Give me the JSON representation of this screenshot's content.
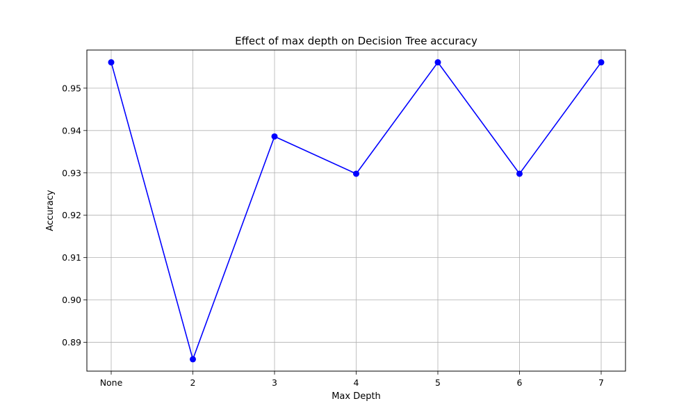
{
  "chart_data": {
    "type": "line",
    "title": "Effect of max depth on Decision Tree accuracy",
    "xlabel": "Max Depth",
    "ylabel": "Accuracy",
    "categories": [
      "None",
      "2",
      "3",
      "4",
      "5",
      "6",
      "7"
    ],
    "series": [
      {
        "values": [
          0.9561,
          0.886,
          0.9386,
          0.9298,
          0.9561,
          0.9298,
          0.9561
        ],
        "color": "#0000ff",
        "marker": "circle"
      }
    ],
    "ylim": [
      0.8832,
      0.959
    ],
    "yticks": [
      0.89,
      0.9,
      0.91,
      0.92,
      0.93,
      0.94,
      0.95
    ],
    "ytick_labels": [
      "0.89",
      "0.90",
      "0.91",
      "0.92",
      "0.93",
      "0.94",
      "0.95"
    ],
    "grid": true,
    "legend": "none"
  }
}
